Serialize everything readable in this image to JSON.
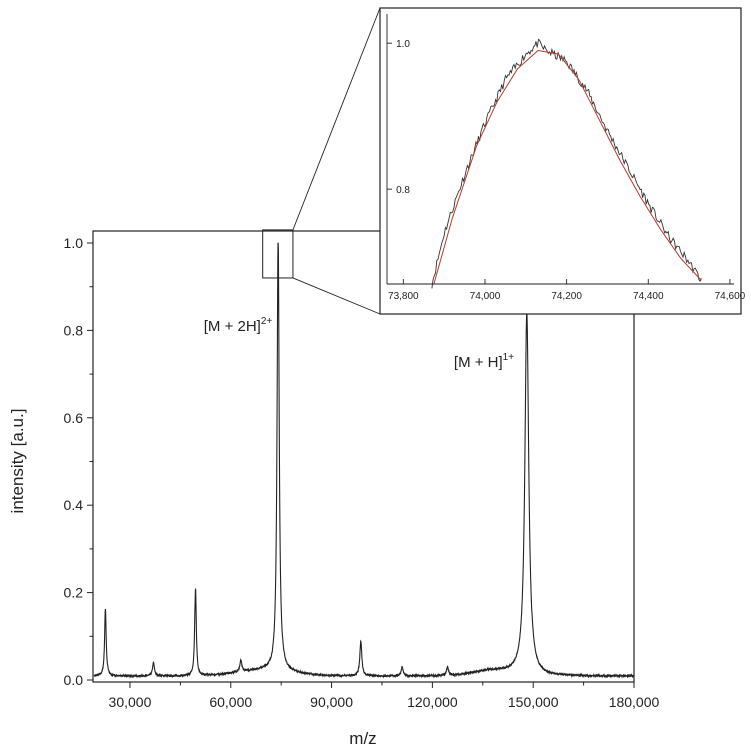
{
  "chart_data": [
    {
      "id": "main",
      "type": "line",
      "xlabel": "m/z",
      "ylabel": "intensity [a.u.]",
      "xlim": [
        19000,
        180000
      ],
      "ylim": [
        0.0,
        1.0
      ],
      "x_ticks": [
        30000,
        60000,
        90000,
        120000,
        150000,
        180000
      ],
      "x_tick_labels": [
        "30,000",
        "60,000",
        "90,000",
        "120,000",
        "150,000",
        "180,000"
      ],
      "y_ticks": [
        0.0,
        0.2,
        0.4,
        0.6,
        0.8,
        1.0
      ],
      "y_tick_labels": [
        "0.0",
        "0.2",
        "0.4",
        "0.6",
        "0.8",
        "1.0"
      ],
      "grid": false,
      "series": [
        {
          "color": "#222222",
          "peaks": [
            {
              "x": 22700,
              "y": 0.155
            },
            {
              "x": 37000,
              "y": 0.03
            },
            {
              "x": 49500,
              "y": 0.2
            },
            {
              "x": 63000,
              "y": 0.025
            },
            {
              "x": 74100,
              "y": 1.0
            },
            {
              "x": 98700,
              "y": 0.08
            },
            {
              "x": 111000,
              "y": 0.02
            },
            {
              "x": 124500,
              "y": 0.02
            },
            {
              "x": 148100,
              "y": 0.83
            }
          ]
        }
      ],
      "annotations": [
        {
          "base": "[M + 2H]",
          "sup": "2+",
          "x": 74100
        },
        {
          "base": "[M + H]",
          "sup": "1+",
          "x": 148100
        }
      ],
      "zoom_box": {
        "x_range": [
          69500,
          78500
        ],
        "y_range": [
          0.92,
          1.03
        ]
      }
    },
    {
      "id": "inset",
      "type": "line",
      "xlabel": "",
      "ylabel": "",
      "xlim": [
        73760,
        74610
      ],
      "ylim": [
        0.67,
        1.04
      ],
      "x_ticks": [
        73800,
        74000,
        74200,
        74400,
        74600
      ],
      "x_tick_labels": [
        "73,800",
        "74,000",
        "74,200",
        "74,400",
        "74,600"
      ],
      "y_ticks": [
        0.8,
        1.0
      ],
      "y_tick_labels": [
        "0.8",
        "1.0"
      ],
      "grid": false,
      "series": [
        {
          "color": "#333333",
          "x": [
            73870,
            73900,
            73950,
            74000,
            74050,
            74100,
            74130,
            74150,
            74200,
            74250,
            74300,
            74350,
            74400,
            74450,
            74500,
            74530
          ],
          "y": [
            0.67,
            0.74,
            0.82,
            0.89,
            0.95,
            0.985,
            1.0,
            0.99,
            0.975,
            0.935,
            0.88,
            0.83,
            0.78,
            0.735,
            0.7,
            0.675
          ]
        },
        {
          "color": "#c0392b",
          "x": [
            73875,
            73920,
            73980,
            74030,
            74080,
            74130,
            74180,
            74230,
            74280,
            74330,
            74380,
            74430,
            74480,
            74530
          ],
          "y": [
            0.67,
            0.76,
            0.86,
            0.92,
            0.965,
            0.99,
            0.985,
            0.95,
            0.895,
            0.84,
            0.79,
            0.745,
            0.705,
            0.675
          ]
        }
      ]
    }
  ]
}
